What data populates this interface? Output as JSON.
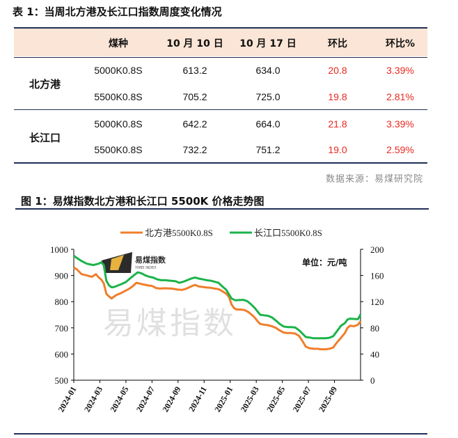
{
  "table": {
    "title": "表 1：当周北方港及长江口指数周度变化情况",
    "headers": [
      "煤种",
      "10 月 10 日",
      "10 月 17 日",
      "环比",
      "环比%"
    ],
    "groups": [
      {
        "name": "北方港",
        "rows": [
          {
            "coal": "5000K0.8S",
            "d1": "613.2",
            "d2": "634.0",
            "chg": "20.8",
            "pct": "3.39%"
          },
          {
            "coal": "5500K0.8S",
            "d1": "705.2",
            "d2": "725.0",
            "chg": "19.8",
            "pct": "2.81%"
          }
        ]
      },
      {
        "name": "长江口",
        "rows": [
          {
            "coal": "5000K0.8S",
            "d1": "642.2",
            "d2": "664.0",
            "chg": "21.8",
            "pct": "3.39%"
          },
          {
            "coal": "5500K0.8S",
            "d1": "732.2",
            "d2": "751.2",
            "chg": "19.0",
            "pct": "2.59%"
          }
        ]
      }
    ],
    "source": "数据来源：易煤研究院"
  },
  "chart_title": "图 1：易煤指数北方港和长江口 5500K 价格走势图",
  "watermark": {
    "logo_text": "易煤指数",
    "logo_subtext": "YIMEI INDEX",
    "big_text": "易煤指数"
  },
  "colors": {
    "north": "#f07e2b",
    "yangtze": "#1bb34a",
    "red": "#e8281e",
    "navy": "#1f2f55",
    "header_bg": "#fbe5d6"
  },
  "chart_data": {
    "type": "line",
    "unit_label": "单位：元/吨",
    "x_ticks": [
      "2024-01",
      "2024-03",
      "2024-05",
      "2024-07",
      "2024-09",
      "2024-11",
      "2025-01",
      "2025-03",
      "2025-05",
      "2025-07",
      "2025-09"
    ],
    "y_left": {
      "min": 500,
      "max": 1000,
      "ticks": [
        500,
        600,
        700,
        800,
        900,
        1000
      ]
    },
    "y_right": {
      "min": 0,
      "max": 200,
      "ticks": [
        0,
        40,
        80,
        120,
        160,
        200
      ]
    },
    "x_range": [
      0,
      22
    ],
    "series": [
      {
        "name": "北方港5500K0.8S",
        "color": "#f07e2b",
        "points": [
          [
            0.0,
            930
          ],
          [
            0.2,
            925
          ],
          [
            0.4,
            915
          ],
          [
            0.6,
            905
          ],
          [
            1.0,
            900
          ],
          [
            1.4,
            895
          ],
          [
            1.7,
            905
          ],
          [
            1.9,
            893
          ],
          [
            2.1,
            885
          ],
          [
            2.3,
            870
          ],
          [
            2.5,
            830
          ],
          [
            2.7,
            820
          ],
          [
            2.9,
            812
          ],
          [
            3.1,
            820
          ],
          [
            3.3,
            826
          ],
          [
            3.6,
            832
          ],
          [
            3.9,
            840
          ],
          [
            4.2,
            848
          ],
          [
            4.5,
            858
          ],
          [
            4.8,
            872
          ],
          [
            5.0,
            870
          ],
          [
            5.3,
            866
          ],
          [
            5.7,
            862
          ],
          [
            6.0,
            860
          ],
          [
            6.3,
            852
          ],
          [
            6.6,
            850
          ],
          [
            7.0,
            851
          ],
          [
            7.5,
            850
          ],
          [
            8.0,
            846
          ],
          [
            8.3,
            845
          ],
          [
            8.6,
            849
          ],
          [
            9.0,
            858
          ],
          [
            9.3,
            864
          ],
          [
            9.6,
            858
          ],
          [
            9.9,
            856
          ],
          [
            10.2,
            854
          ],
          [
            10.5,
            853
          ],
          [
            10.8,
            850
          ],
          [
            11.1,
            848
          ],
          [
            11.4,
            840
          ],
          [
            11.7,
            830
          ],
          [
            11.9,
            818
          ],
          [
            12.1,
            790
          ],
          [
            12.3,
            775
          ],
          [
            12.5,
            770
          ],
          [
            12.8,
            770
          ],
          [
            13.1,
            768
          ],
          [
            13.4,
            760
          ],
          [
            13.7,
            748
          ],
          [
            13.9,
            738
          ],
          [
            14.1,
            725
          ],
          [
            14.3,
            715
          ],
          [
            14.6,
            712
          ],
          [
            14.9,
            710
          ],
          [
            15.2,
            706
          ],
          [
            15.5,
            700
          ],
          [
            15.8,
            690
          ],
          [
            16.1,
            682
          ],
          [
            16.4,
            680
          ],
          [
            16.7,
            680
          ],
          [
            17.0,
            678
          ],
          [
            17.3,
            668
          ],
          [
            17.6,
            645
          ],
          [
            17.8,
            628
          ],
          [
            18.1,
            622
          ],
          [
            18.4,
            620
          ],
          [
            18.7,
            620
          ],
          [
            19.0,
            618
          ],
          [
            19.3,
            618
          ],
          [
            19.6,
            620
          ],
          [
            19.9,
            625
          ],
          [
            20.2,
            645
          ],
          [
            20.5,
            662
          ],
          [
            20.8,
            680
          ],
          [
            21.0,
            700
          ],
          [
            21.2,
            708
          ],
          [
            21.5,
            706
          ],
          [
            21.8,
            712
          ],
          [
            22.0,
            725
          ]
        ]
      },
      {
        "name": "长江口5500K0.8S",
        "color": "#1bb34a",
        "points": [
          [
            0.0,
            975
          ],
          [
            0.3,
            965
          ],
          [
            0.6,
            955
          ],
          [
            1.0,
            945
          ],
          [
            1.5,
            940
          ],
          [
            1.9,
            945
          ],
          [
            2.1,
            950
          ],
          [
            2.3,
            940
          ],
          [
            2.5,
            880
          ],
          [
            2.7,
            862
          ],
          [
            2.9,
            855
          ],
          [
            3.1,
            856
          ],
          [
            3.4,
            862
          ],
          [
            3.7,
            868
          ],
          [
            4.0,
            875
          ],
          [
            4.3,
            888
          ],
          [
            4.6,
            900
          ],
          [
            4.9,
            912
          ],
          [
            5.2,
            908
          ],
          [
            5.5,
            900
          ],
          [
            5.8,
            895
          ],
          [
            6.1,
            892
          ],
          [
            6.4,
            885
          ],
          [
            6.7,
            882
          ],
          [
            7.0,
            882
          ],
          [
            7.4,
            880
          ],
          [
            7.8,
            878
          ],
          [
            8.1,
            872
          ],
          [
            8.4,
            876
          ],
          [
            8.7,
            882
          ],
          [
            9.0,
            888
          ],
          [
            9.3,
            892
          ],
          [
            9.6,
            888
          ],
          [
            9.9,
            885
          ],
          [
            10.2,
            882
          ],
          [
            10.5,
            880
          ],
          [
            10.8,
            876
          ],
          [
            11.1,
            872
          ],
          [
            11.4,
            858
          ],
          [
            11.7,
            845
          ],
          [
            11.9,
            828
          ],
          [
            12.1,
            812
          ],
          [
            12.4,
            805
          ],
          [
            12.7,
            806
          ],
          [
            13.0,
            807
          ],
          [
            13.3,
            802
          ],
          [
            13.6,
            790
          ],
          [
            13.9,
            775
          ],
          [
            14.1,
            762
          ],
          [
            14.3,
            750
          ],
          [
            14.6,
            748
          ],
          [
            14.9,
            746
          ],
          [
            15.2,
            740
          ],
          [
            15.5,
            728
          ],
          [
            15.8,
            715
          ],
          [
            16.1,
            705
          ],
          [
            16.4,
            703
          ],
          [
            16.7,
            703
          ],
          [
            17.0,
            701
          ],
          [
            17.3,
            690
          ],
          [
            17.6,
            675
          ],
          [
            17.8,
            665
          ],
          [
            18.1,
            663
          ],
          [
            18.4,
            660
          ],
          [
            18.7,
            660
          ],
          [
            19.0,
            660
          ],
          [
            19.3,
            660
          ],
          [
            19.6,
            662
          ],
          [
            19.9,
            668
          ],
          [
            20.2,
            688
          ],
          [
            20.5,
            708
          ],
          [
            20.8,
            718
          ],
          [
            21.0,
            732
          ],
          [
            21.2,
            735
          ],
          [
            21.5,
            734
          ],
          [
            21.8,
            733
          ],
          [
            22.0,
            751
          ]
        ]
      }
    ]
  }
}
